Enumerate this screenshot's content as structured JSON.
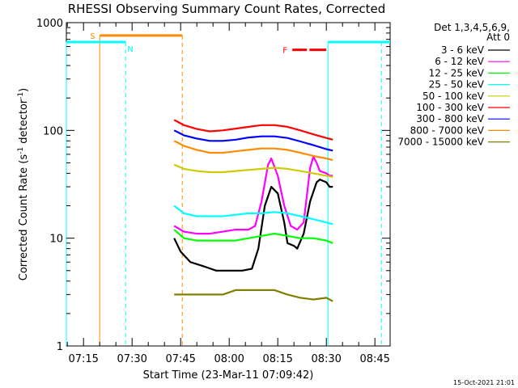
{
  "chart_data": {
    "type": "line",
    "title": "RHESSI Observing Summary Count Rates, Corrected",
    "xlabel": "Start Time (23-Mar-11 07:09:42)",
    "ylabel": "Corrected Count Rate (s⁻¹ detector⁻¹)",
    "ylabel_main": "Corrected Count Rate (s",
    "ylabel_sup1": "-1",
    "ylabel_mid": " detector",
    "ylabel_sup2": "-1",
    "ylabel_end": ")",
    "x_ticks": [
      "07:15",
      "07:30",
      "07:45",
      "08:00",
      "08:15",
      "08:30",
      "08:45"
    ],
    "x_tick_minutes": [
      15,
      30,
      45,
      60,
      75,
      90,
      105
    ],
    "xlim_minutes": [
      9.7,
      109.7
    ],
    "yscale": "log",
    "ylim": [
      1,
      1000
    ],
    "y_ticks": [
      "1",
      "10",
      "100",
      "1000"
    ],
    "y_tick_values": [
      1,
      10,
      100,
      1000
    ],
    "legend_header": [
      "Det 1,3,4,5,6,9,",
      "Att 0"
    ],
    "legend_placement": "right",
    "series": [
      {
        "name": "3 - 6 keV",
        "color": "#000000",
        "points": [
          [
            43,
            10
          ],
          [
            45,
            7.5
          ],
          [
            48,
            6
          ],
          [
            52,
            5.5
          ],
          [
            56,
            5
          ],
          [
            60,
            5
          ],
          [
            64,
            5
          ],
          [
            67,
            5.2
          ],
          [
            69,
            8
          ],
          [
            71,
            20
          ],
          [
            73,
            30
          ],
          [
            75,
            26
          ],
          [
            77,
            14
          ],
          [
            78,
            9
          ],
          [
            80,
            8.5
          ],
          [
            81,
            8
          ],
          [
            83,
            11
          ],
          [
            85,
            22
          ],
          [
            87,
            33
          ],
          [
            88,
            35
          ],
          [
            90,
            33
          ],
          [
            91,
            30
          ],
          [
            92,
            30
          ]
        ]
      },
      {
        "name": "6 - 12 keV",
        "color": "#ff00ff",
        "points": [
          [
            43,
            13
          ],
          [
            46,
            11.5
          ],
          [
            50,
            11
          ],
          [
            54,
            11
          ],
          [
            58,
            11.5
          ],
          [
            62,
            12
          ],
          [
            66,
            12
          ],
          [
            68,
            13
          ],
          [
            70,
            22
          ],
          [
            72,
            48
          ],
          [
            73,
            55
          ],
          [
            75,
            38
          ],
          [
            77,
            20
          ],
          [
            79,
            13
          ],
          [
            81,
            12
          ],
          [
            83,
            14
          ],
          [
            85,
            45
          ],
          [
            86,
            57
          ],
          [
            87,
            50
          ],
          [
            88,
            42
          ],
          [
            90,
            40
          ],
          [
            91,
            38
          ],
          [
            92,
            38
          ]
        ]
      },
      {
        "name": "12 - 25 keV",
        "color": "#00ff00",
        "points": [
          [
            43,
            12
          ],
          [
            46,
            10
          ],
          [
            50,
            9.5
          ],
          [
            54,
            9.5
          ],
          [
            58,
            9.5
          ],
          [
            62,
            9.5
          ],
          [
            66,
            10
          ],
          [
            70,
            10.5
          ],
          [
            74,
            11
          ],
          [
            78,
            10.5
          ],
          [
            82,
            10
          ],
          [
            86,
            10
          ],
          [
            90,
            9.5
          ],
          [
            92,
            9
          ]
        ]
      },
      {
        "name": "25 - 50 keV",
        "color": "#00ffff",
        "points": [
          [
            43,
            20
          ],
          [
            46,
            17
          ],
          [
            50,
            16
          ],
          [
            54,
            16
          ],
          [
            58,
            16
          ],
          [
            62,
            16.5
          ],
          [
            66,
            17
          ],
          [
            70,
            17
          ],
          [
            74,
            17.5
          ],
          [
            78,
            17
          ],
          [
            82,
            16
          ],
          [
            86,
            15
          ],
          [
            90,
            14
          ],
          [
            92,
            13.5
          ]
        ]
      },
      {
        "name": "50 - 100 keV",
        "color": "#cccc00",
        "points": [
          [
            43,
            48
          ],
          [
            46,
            44
          ],
          [
            50,
            42
          ],
          [
            54,
            41
          ],
          [
            58,
            41
          ],
          [
            62,
            42
          ],
          [
            66,
            43
          ],
          [
            70,
            44
          ],
          [
            74,
            45
          ],
          [
            78,
            44
          ],
          [
            82,
            42
          ],
          [
            86,
            40
          ],
          [
            90,
            38
          ],
          [
            92,
            37
          ]
        ]
      },
      {
        "name": "100 - 300 keV",
        "color": "#ff0000",
        "points": [
          [
            43,
            125
          ],
          [
            46,
            112
          ],
          [
            50,
            103
          ],
          [
            54,
            98
          ],
          [
            58,
            100
          ],
          [
            62,
            104
          ],
          [
            66,
            108
          ],
          [
            70,
            112
          ],
          [
            74,
            112
          ],
          [
            78,
            108
          ],
          [
            82,
            100
          ],
          [
            86,
            92
          ],
          [
            90,
            85
          ],
          [
            92,
            82
          ]
        ]
      },
      {
        "name": "300 - 800 keV",
        "color": "#0000ff",
        "points": [
          [
            43,
            100
          ],
          [
            46,
            90
          ],
          [
            50,
            84
          ],
          [
            54,
            80
          ],
          [
            58,
            80
          ],
          [
            62,
            82
          ],
          [
            66,
            86
          ],
          [
            70,
            88
          ],
          [
            74,
            88
          ],
          [
            78,
            85
          ],
          [
            82,
            79
          ],
          [
            86,
            73
          ],
          [
            90,
            67
          ],
          [
            92,
            65
          ]
        ]
      },
      {
        "name": "800 - 7000 keV",
        "color": "#ff8c00",
        "points": [
          [
            43,
            80
          ],
          [
            46,
            72
          ],
          [
            50,
            66
          ],
          [
            54,
            62
          ],
          [
            58,
            62
          ],
          [
            62,
            64
          ],
          [
            66,
            66
          ],
          [
            70,
            68
          ],
          [
            74,
            68
          ],
          [
            78,
            66
          ],
          [
            82,
            62
          ],
          [
            86,
            58
          ],
          [
            90,
            55
          ],
          [
            92,
            53
          ]
        ]
      },
      {
        "name": "7000 - 15000 keV",
        "color": "#808000",
        "points": [
          [
            43,
            3
          ],
          [
            46,
            3
          ],
          [
            50,
            3
          ],
          [
            54,
            3
          ],
          [
            58,
            3
          ],
          [
            62,
            3.3
          ],
          [
            66,
            3.3
          ],
          [
            70,
            3.3
          ],
          [
            74,
            3.3
          ],
          [
            78,
            3
          ],
          [
            82,
            2.8
          ],
          [
            86,
            2.7
          ],
          [
            90,
            2.8
          ],
          [
            92,
            2.6
          ]
        ]
      }
    ],
    "markers": {
      "S": {
        "label": "S",
        "color": "#ff8c00",
        "bar_minutes": [
          20,
          45.5
        ],
        "bar_value": 760
      },
      "F": {
        "label": "F",
        "color": "#ff0000",
        "bars_minutes": [
          [
            79.5,
            84
          ],
          [
            84.8,
            90
          ]
        ],
        "bar_value": 560
      },
      "N": {
        "label": "N",
        "color": "#00ffff",
        "bars_minutes": [
          [
            9.7,
            28
          ],
          [
            90.5,
            109.7
          ]
        ],
        "bar_value": 660
      },
      "orange_vlines_minutes": [
        20,
        45.5
      ],
      "cyan_solid_vlines_minutes": [
        9.7,
        90.5
      ],
      "cyan_dashed_vlines_minutes": [
        28,
        107
      ]
    }
  },
  "footer": {
    "timestamp": "15-Oct-2021 21:01"
  }
}
